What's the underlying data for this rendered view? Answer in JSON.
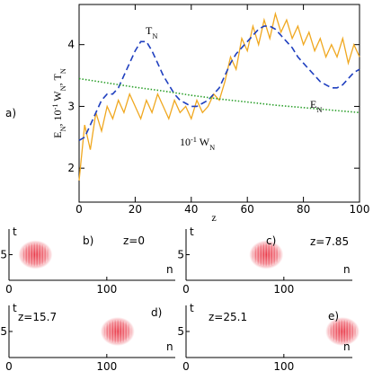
{
  "chart_data": [
    {
      "type": "line",
      "panel_label": "a)",
      "xlabel": "z",
      "ylabel": [
        {
          "text": "E"
        },
        {
          "text": "N",
          "sub": true
        },
        {
          "text": ", 10"
        },
        {
          "text": "-1",
          "sup": true
        },
        {
          "text": " W"
        },
        {
          "text": "N",
          "sub": true
        },
        {
          "text": ", T"
        },
        {
          "text": "N",
          "sub": true
        }
      ],
      "xlim": [
        0,
        100
      ],
      "xticks": [
        0,
        20,
        40,
        60,
        80,
        100
      ],
      "ylim": [
        1.45,
        4.65
      ],
      "yticks": [
        2,
        3,
        4
      ],
      "annotations": [
        [
          {
            "text": "T"
          },
          {
            "text": "N",
            "sub": true
          }
        ],
        [
          {
            "text": "10"
          },
          {
            "text": "-1",
            "sup": true
          },
          {
            "text": " W"
          },
          {
            "text": "N",
            "sub": true
          }
        ],
        [
          {
            "text": "E"
          },
          {
            "text": "N",
            "sub": true
          }
        ]
      ],
      "series": [
        {
          "name": "W",
          "color": "#f0a820",
          "style": "solid",
          "x": [
            0,
            2,
            4,
            6,
            8,
            10,
            12,
            14,
            16,
            18,
            20,
            22,
            24,
            26,
            28,
            30,
            32,
            34,
            36,
            38,
            40,
            42,
            44,
            46,
            48,
            50,
            52,
            54,
            56,
            58,
            60,
            62,
            64,
            66,
            68,
            70,
            72,
            74,
            76,
            78,
            80,
            82,
            84,
            86,
            88,
            90,
            92,
            94,
            96,
            98,
            100
          ],
          "values": [
            1.8,
            2.7,
            2.3,
            2.9,
            2.6,
            3.0,
            2.8,
            3.1,
            2.9,
            3.2,
            3.0,
            2.8,
            3.1,
            2.9,
            3.2,
            3.0,
            2.8,
            3.1,
            2.9,
            3.0,
            2.8,
            3.1,
            2.9,
            3.0,
            3.2,
            3.1,
            3.4,
            3.8,
            3.6,
            4.1,
            3.9,
            4.3,
            4.0,
            4.4,
            4.1,
            4.5,
            4.2,
            4.4,
            4.1,
            4.3,
            4.0,
            4.2,
            3.9,
            4.1,
            3.8,
            4.0,
            3.8,
            4.1,
            3.7,
            4.0,
            3.8
          ]
        },
        {
          "name": "T",
          "color": "#1f3fbf",
          "style": "dashed",
          "x": [
            0,
            2,
            4,
            6,
            8,
            10,
            12,
            14,
            16,
            18,
            20,
            22,
            24,
            26,
            28,
            30,
            32,
            34,
            36,
            38,
            40,
            42,
            44,
            46,
            48,
            50,
            52,
            54,
            56,
            58,
            60,
            62,
            64,
            66,
            68,
            70,
            72,
            74,
            76,
            78,
            80,
            82,
            84,
            86,
            88,
            90,
            92,
            94,
            96,
            98,
            100
          ],
          "values": [
            2.45,
            2.5,
            2.7,
            2.9,
            3.1,
            3.2,
            3.2,
            3.3,
            3.5,
            3.7,
            3.9,
            4.05,
            4.05,
            3.9,
            3.7,
            3.5,
            3.35,
            3.2,
            3.1,
            3.05,
            3.0,
            3.0,
            3.05,
            3.1,
            3.2,
            3.3,
            3.5,
            3.7,
            3.85,
            3.95,
            4.05,
            4.15,
            4.25,
            4.3,
            4.3,
            4.25,
            4.15,
            4.05,
            3.95,
            3.8,
            3.7,
            3.6,
            3.5,
            3.4,
            3.35,
            3.3,
            3.3,
            3.35,
            3.45,
            3.55,
            3.6
          ]
        },
        {
          "name": "E",
          "color": "#2ca02c",
          "style": "dotted",
          "x": [
            0,
            10,
            20,
            30,
            40,
            50,
            60,
            70,
            80,
            90,
            100
          ],
          "values": [
            3.45,
            3.38,
            3.31,
            3.25,
            3.18,
            3.12,
            3.07,
            3.02,
            2.98,
            2.94,
            2.9
          ]
        }
      ]
    },
    {
      "type": "density",
      "panel_label": "b)",
      "annotation": "z=0",
      "xlabel": "n",
      "ylabel": "t",
      "xlim": [
        0,
        170
      ],
      "xticks": [
        0,
        100
      ],
      "ylim": [
        0,
        10
      ],
      "yticks": [
        5
      ],
      "center": 27,
      "color": "#e83040"
    },
    {
      "type": "density",
      "panel_label": "c)",
      "annotation": "z=7.85",
      "xlabel": "n",
      "ylabel": "t",
      "xlim": [
        0,
        170
      ],
      "xticks": [
        0,
        100
      ],
      "ylim": [
        0,
        10
      ],
      "yticks": [
        5
      ],
      "center": 82,
      "color": "#e83040"
    },
    {
      "type": "density",
      "panel_label": "d)",
      "annotation": "z=15.7",
      "xlabel": "n",
      "ylabel": "t",
      "xlim": [
        0,
        170
      ],
      "xticks": [
        0,
        100
      ],
      "ylim": [
        0,
        10
      ],
      "yticks": [
        5
      ],
      "center": 111,
      "color": "#e83040"
    },
    {
      "type": "density",
      "panel_label": "e)",
      "annotation": "z=25.1",
      "xlabel": "n",
      "ylabel": "t",
      "xlim": [
        0,
        170
      ],
      "xticks": [
        0,
        100
      ],
      "ylim": [
        0,
        10
      ],
      "yticks": [
        5
      ],
      "center": 160,
      "color": "#e83040"
    }
  ]
}
